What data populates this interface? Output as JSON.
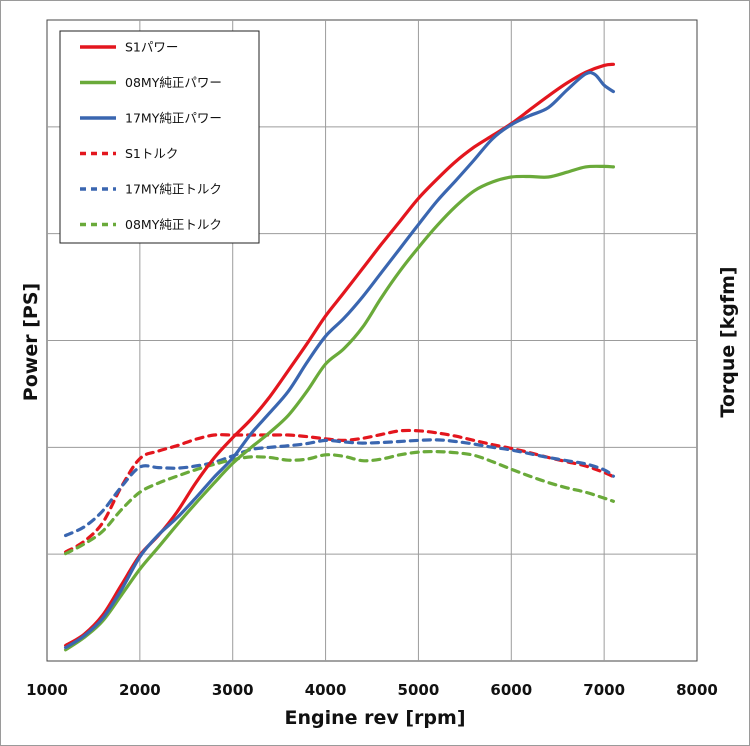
{
  "chart_data": {
    "type": "line",
    "xlabel": "Engine rev [rpm]",
    "ylabel_left": "Power [PS]",
    "ylabel_right": "Torque [kgfm]",
    "xlim": [
      1000,
      8000
    ],
    "x_ticks": [
      1000,
      2000,
      3000,
      4000,
      5000,
      6000,
      7000,
      8000
    ],
    "y_grid_count": 6,
    "y_tick_labels": "none",
    "grid": true,
    "legend_position": "top-left",
    "series": [
      {
        "name": "S1パワー",
        "color": "#e3161e",
        "style": "solid",
        "x": [
          1200,
          1400,
          1600,
          1800,
          2000,
          2200,
          2400,
          2600,
          2800,
          3000,
          3200,
          3400,
          3600,
          3800,
          4000,
          4200,
          4400,
          4600,
          4800,
          5000,
          5200,
          5400,
          5600,
          5800,
          6000,
          6200,
          6400,
          6600,
          6800,
          7000,
          7100
        ],
        "y": [
          2.9,
          5.0,
          8.6,
          14.2,
          19.8,
          23.5,
          27.9,
          33.3,
          38.0,
          41.8,
          45.3,
          49.5,
          54.4,
          59.4,
          64.6,
          69.0,
          73.5,
          78.0,
          82.3,
          86.6,
          90.2,
          93.5,
          96.2,
          98.4,
          100.6,
          103.2,
          105.8,
          108.2,
          110.2,
          111.5,
          111.7
        ]
      },
      {
        "name": "08MY純正パワー",
        "color": "#6aaa3a",
        "style": "solid",
        "x": [
          1200,
          1400,
          1600,
          1800,
          2000,
          2200,
          2400,
          2600,
          2800,
          3000,
          3200,
          3400,
          3600,
          3800,
          4000,
          4200,
          4400,
          4600,
          4800,
          5000,
          5200,
          5400,
          5600,
          5800,
          6000,
          6200,
          6400,
          6600,
          6800,
          7000,
          7100
        ],
        "y": [
          2.1,
          4.4,
          7.5,
          12.3,
          17.2,
          21.3,
          25.5,
          29.5,
          33.3,
          37.0,
          40.0,
          42.8,
          46.0,
          50.5,
          55.6,
          58.5,
          62.5,
          68.0,
          73.0,
          77.4,
          81.5,
          85.1,
          88.0,
          89.7,
          90.6,
          90.7,
          90.6,
          91.5,
          92.5,
          92.6,
          92.5
        ]
      },
      {
        "name": "17MY純正パワー",
        "color": "#3a66b0",
        "style": "solid",
        "x": [
          1200,
          1400,
          1600,
          1800,
          2000,
          2200,
          2400,
          2600,
          2800,
          3000,
          3200,
          3400,
          3600,
          3800,
          4000,
          4200,
          4400,
          4600,
          4800,
          5000,
          5200,
          5400,
          5600,
          5800,
          6000,
          6200,
          6400,
          6600,
          6800,
          6900,
          7000,
          7100
        ],
        "y": [
          2.5,
          4.7,
          8.0,
          13.3,
          19.5,
          23.6,
          26.8,
          30.5,
          34.4,
          38.0,
          42.6,
          46.5,
          50.5,
          55.9,
          60.8,
          64.2,
          68.2,
          72.7,
          77.2,
          81.7,
          86.1,
          89.9,
          93.8,
          97.8,
          100.4,
          102.1,
          103.6,
          106.9,
          109.9,
          109.8,
          107.8,
          106.6
        ]
      },
      {
        "name": "S1トルク",
        "color": "#e3161e",
        "style": "dashed",
        "x": [
          1200,
          1400,
          1600,
          1800,
          2000,
          2200,
          2400,
          2600,
          2800,
          3000,
          3200,
          3400,
          3600,
          3800,
          4000,
          4200,
          4400,
          4600,
          4800,
          5000,
          5200,
          5400,
          5600,
          5800,
          6000,
          6200,
          6400,
          6600,
          6800,
          7000,
          7100
        ],
        "y": [
          20.4,
          22.4,
          25.9,
          32.6,
          37.9,
          39.3,
          40.3,
          41.5,
          42.3,
          42.3,
          42.3,
          42.3,
          42.3,
          42.0,
          41.6,
          41.3,
          41.7,
          42.4,
          43.1,
          43.1,
          42.7,
          42.1,
          41.3,
          40.5,
          39.8,
          39.0,
          38.1,
          37.3,
          36.5,
          35.3,
          34.5
        ]
      },
      {
        "name": "17MY純正トルク",
        "color": "#3a66b0",
        "style": "dashed",
        "x": [
          1200,
          1400,
          1600,
          1800,
          2000,
          2200,
          2400,
          2600,
          2800,
          3000,
          3200,
          3400,
          3600,
          3800,
          4000,
          4200,
          4400,
          4600,
          4800,
          5000,
          5200,
          5400,
          5600,
          5800,
          6000,
          6200,
          6400,
          6600,
          6800,
          7000,
          7100
        ],
        "y": [
          23.5,
          25.1,
          28.1,
          32.6,
          36.3,
          36.2,
          36.1,
          36.5,
          37.2,
          38.4,
          39.6,
          40.0,
          40.3,
          40.7,
          41.3,
          41.0,
          40.8,
          40.9,
          41.1,
          41.3,
          41.4,
          41.1,
          40.6,
          40.0,
          39.5,
          38.8,
          38.1,
          37.5,
          36.9,
          35.8,
          34.6
        ]
      },
      {
        "name": "08MY純正トルク",
        "color": "#6aaa3a",
        "style": "dashed",
        "x": [
          1200,
          1400,
          1600,
          1800,
          2000,
          2200,
          2400,
          2600,
          2800,
          3000,
          3200,
          3400,
          3600,
          3800,
          4000,
          4200,
          4400,
          4600,
          4800,
          5000,
          5200,
          5400,
          5600,
          5800,
          6000,
          6200,
          6400,
          6600,
          6800,
          7000,
          7100
        ],
        "y": [
          20.1,
          21.9,
          24.3,
          28.3,
          31.6,
          33.3,
          34.6,
          35.8,
          36.8,
          37.7,
          38.2,
          38.1,
          37.6,
          37.8,
          38.6,
          38.3,
          37.5,
          37.8,
          38.6,
          39.1,
          39.2,
          39.0,
          38.5,
          37.3,
          35.9,
          34.6,
          33.4,
          32.4,
          31.6,
          30.5,
          29.9
        ]
      }
    ]
  }
}
